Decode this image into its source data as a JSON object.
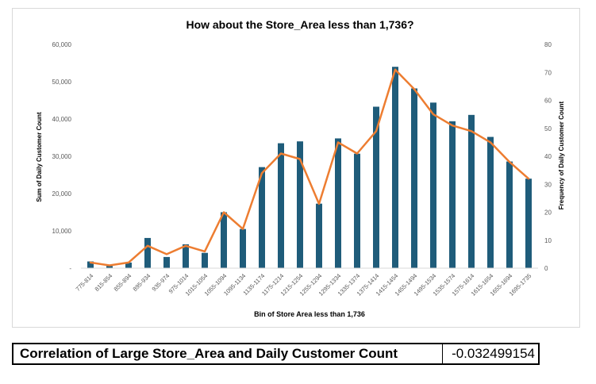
{
  "chart_data": {
    "type": "bar",
    "title": "How about the Store_Area less than 1,736?",
    "xlabel": "Bin of Store Area less than 1,736",
    "ylabel": "Sum of Daily Customer Count",
    "y2label": "Frequency of Daily Customer Count",
    "ylim": [
      0,
      60000
    ],
    "y2lim": [
      0,
      80
    ],
    "yticks": [
      "-",
      "10,000",
      "20,000",
      "30,000",
      "40,000",
      "50,000",
      "60,000"
    ],
    "y2ticks": [
      "0",
      "10",
      "20",
      "30",
      "40",
      "50",
      "60",
      "70",
      "80"
    ],
    "grid": false,
    "colors": {
      "bars": "#1f5c7a",
      "line": "#ed7d31"
    },
    "categories": [
      "775-814",
      "815-854",
      "855-894",
      "895-934",
      "935-974",
      "975-1014",
      "1015-1054",
      "1055-1094",
      "1095-1134",
      "1135-1174",
      "1175-1214",
      "1215-1254",
      "1255-1294",
      "1295-1334",
      "1335-1374",
      "1375-1414",
      "1415-1454",
      "1455-1494",
      "1495-1534",
      "1535-1574",
      "1575-1614",
      "1615-1654",
      "1655-1694",
      "1695-1735"
    ],
    "series": [
      {
        "axis": "left",
        "kind": "bar",
        "values": [
          1800,
          600,
          1500,
          8100,
          3000,
          6400,
          4100,
          15000,
          10500,
          27100,
          33500,
          34000,
          17300,
          34800,
          30700,
          43300,
          54000,
          48200,
          44400,
          39400,
          41100,
          35200,
          28600,
          24000
        ]
      },
      {
        "axis": "right",
        "kind": "line",
        "values": [
          2,
          1,
          2,
          8,
          5,
          8,
          6,
          20,
          14,
          34,
          41,
          39,
          23,
          45,
          41,
          49,
          71,
          64,
          55,
          51,
          49,
          45,
          38,
          32
        ]
      }
    ]
  },
  "table": {
    "label": "Correlation of Large Store_Area and Daily Customer Count",
    "value": "-0.032499154"
  }
}
